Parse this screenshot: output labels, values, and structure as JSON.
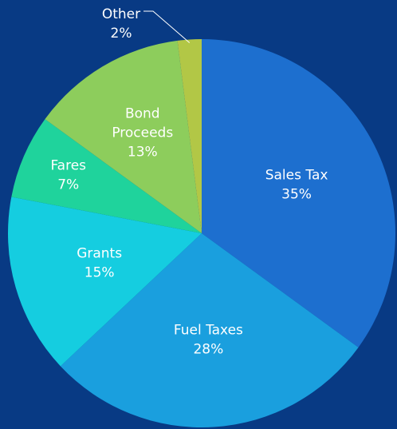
{
  "chart_data": {
    "type": "pie",
    "categories": [
      "Sales Tax",
      "Fuel Taxes",
      "Grants",
      "Fares",
      "Bond Proceeds",
      "Other"
    ],
    "values": [
      35,
      28,
      15,
      7,
      13,
      2
    ],
    "value_labels": [
      "35%",
      "28%",
      "15%",
      "7%",
      "13%",
      "2%"
    ],
    "colors": [
      "#1d6fcf",
      "#1a9fde",
      "#15cde0",
      "#1fd39c",
      "#8dcd5c",
      "#b2c746"
    ]
  }
}
